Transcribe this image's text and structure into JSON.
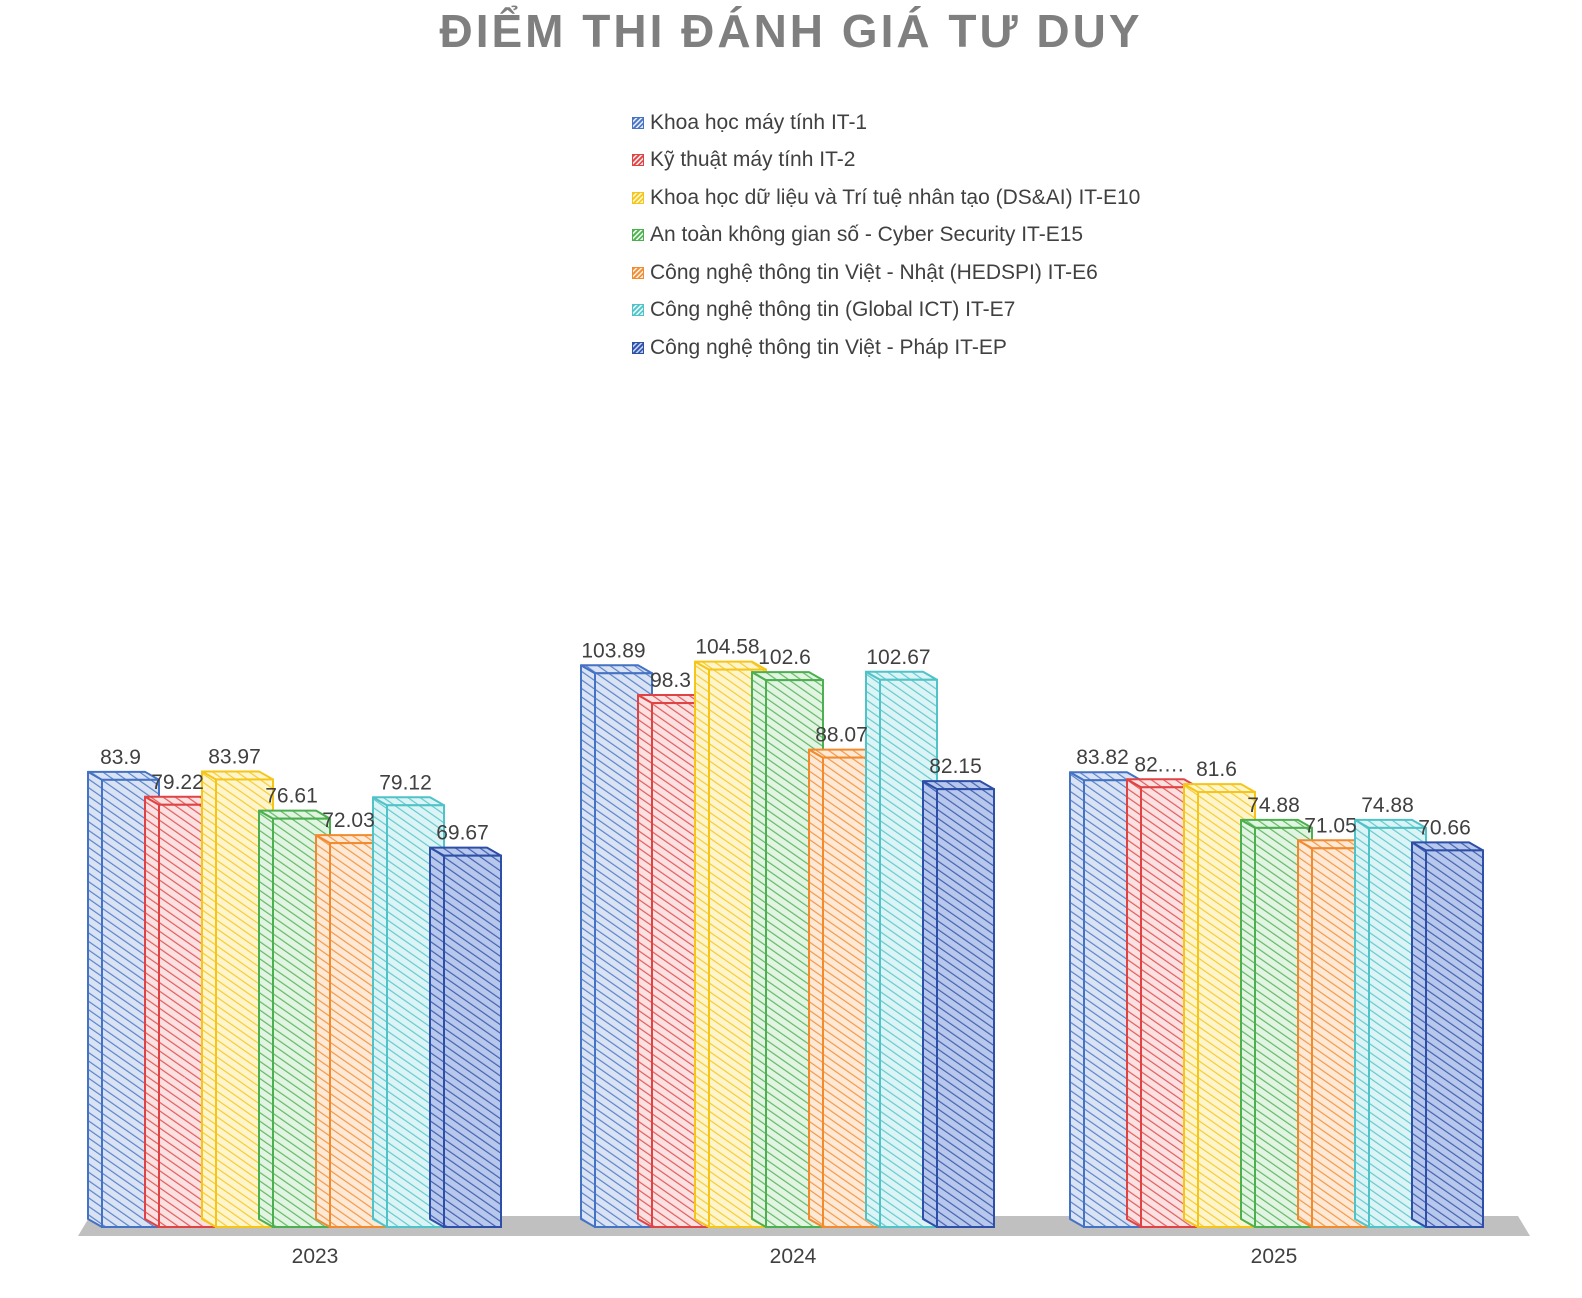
{
  "chart_data": {
    "type": "bar",
    "title": "ĐIỂM THI ĐÁNH GIÁ TƯ DUY",
    "categories": [
      "2023",
      "2024",
      "2025"
    ],
    "legend_position": "top",
    "grid": false,
    "ylim": [
      0,
      110
    ],
    "series": [
      {
        "name": "Khoa học máy tính IT-1",
        "color": "#4472c4",
        "fill": "#dae3f3",
        "values": [
          83.9,
          103.89,
          83.82
        ],
        "labels": [
          "83.9",
          "103.89",
          "83.82"
        ]
      },
      {
        "name": "Kỹ thuật máy tính IT-2",
        "color": "#e04343",
        "fill": "#fbe1e1",
        "values": [
          79.22,
          98.3,
          82.5
        ],
        "labels": [
          "79.22",
          "98.3",
          "82.…"
        ]
      },
      {
        "name": "Khoa học dữ liệu và Trí tuệ nhân tạo (DS&AI) IT-E10",
        "color": "#f5c518",
        "fill": "#fff5cc",
        "values": [
          83.97,
          104.58,
          81.6
        ],
        "labels": [
          "83.97",
          "104.58",
          "81.6"
        ]
      },
      {
        "name": "An toàn không gian số - Cyber Security IT-E15",
        "color": "#4caf50",
        "fill": "#e2f4e2",
        "values": [
          76.61,
          102.6,
          74.88
        ],
        "labels": [
          "76.61",
          "102.6",
          "74.88"
        ]
      },
      {
        "name": "Công nghệ thông tin Việt - Nhật (HEDSPI) IT-E6",
        "color": "#f28a2e",
        "fill": "#fde9d6",
        "values": [
          72.03,
          88.07,
          71.05
        ],
        "labels": [
          "72.03",
          "88.07",
          "71.05"
        ]
      },
      {
        "name": "Công nghệ thông tin (Global ICT) IT-E7",
        "color": "#4fc3c8",
        "fill": "#dcf4f5",
        "values": [
          79.12,
          102.67,
          74.88
        ],
        "labels": [
          "79.12",
          "102.67",
          "74.88"
        ]
      },
      {
        "name": "Công nghệ thông tin Việt - Pháp IT-EP",
        "color": "#2e4fa8",
        "fill": "#b8c8ec",
        "values": [
          69.67,
          82.15,
          70.66
        ],
        "labels": [
          "69.67",
          "82.15",
          "70.66"
        ]
      }
    ]
  }
}
